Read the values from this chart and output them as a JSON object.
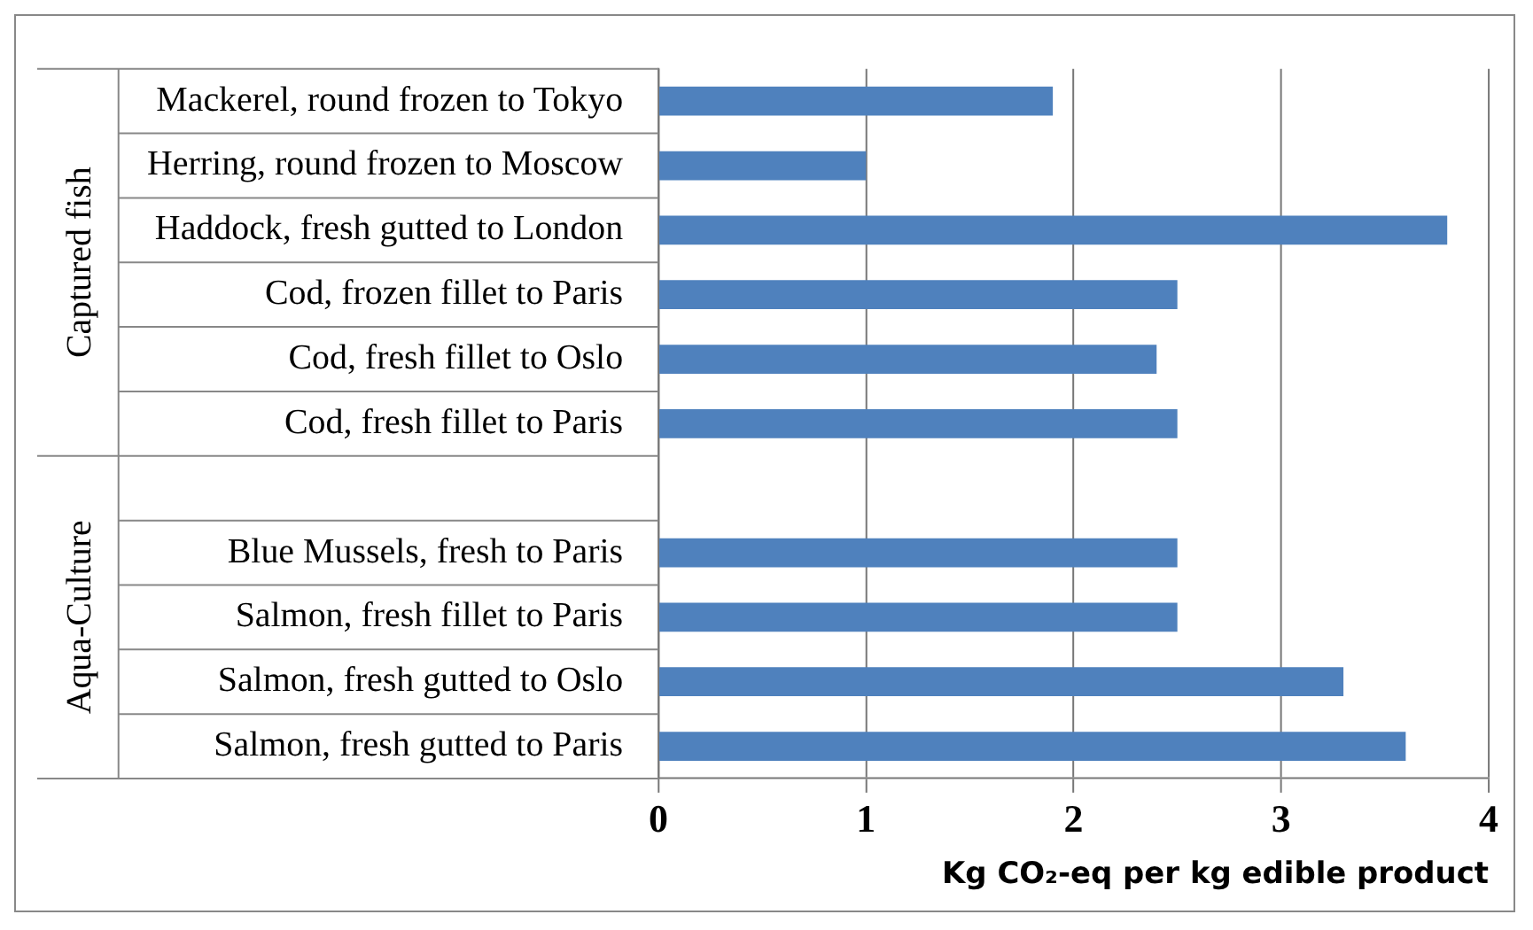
{
  "chart_data": {
    "type": "bar",
    "orientation": "horizontal",
    "xlabel": "Kg CO₂-eq per kg edible product",
    "categories": [
      "Mackerel, round frozen to Tokyo",
      "Herring, round frozen to Moscow",
      "Haddock, fresh gutted to London",
      "Cod, frozen fillet to Paris",
      "Cod, fresh fillet to Oslo",
      "Cod, fresh fillet to Paris",
      null,
      "Blue Mussels, fresh to Paris",
      "Salmon, fresh fillet to Paris",
      "Salmon, fresh gutted to Oslo",
      "Salmon, fresh gutted to Paris"
    ],
    "values": [
      1.9,
      1.0,
      3.8,
      2.5,
      2.4,
      2.5,
      null,
      2.5,
      2.5,
      3.3,
      3.6
    ],
    "color": "#4f81bd",
    "xlim": [
      0,
      4
    ],
    "xticks": [
      0,
      1,
      2,
      3,
      4
    ],
    "grid": "x",
    "legend": false,
    "annotations": [
      "Captured fish",
      "Aqua-Culture"
    ]
  }
}
